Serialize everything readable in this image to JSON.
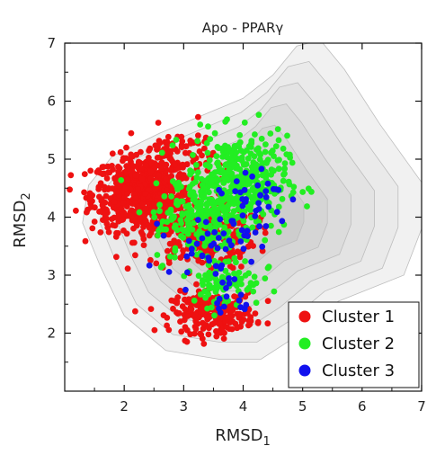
{
  "chart_data": {
    "type": "scatter",
    "title": "Apo - PPARγ",
    "xlabel": {
      "base": "RMSD",
      "sub": "1"
    },
    "ylabel": {
      "base": "RMSD",
      "sub": "2"
    },
    "xlim": [
      1,
      7
    ],
    "ylim": [
      1,
      7
    ],
    "x_ticks": [
      "2",
      "3",
      "4",
      "5",
      "6",
      "7"
    ],
    "y_ticks": [
      "2",
      "3",
      "4",
      "5",
      "6",
      "7"
    ],
    "grid": false,
    "legend_position": "bottom-right",
    "background": "grey free-energy contour landscape",
    "series": [
      {
        "name": "Cluster 1",
        "color": "#ee1111",
        "clusters": [
          {
            "center": [
              2.3,
              4.4
            ],
            "spread": [
              0.42,
              0.32
            ],
            "count": 650
          },
          {
            "center": [
              3.3,
              3.7
            ],
            "spread": [
              0.45,
              0.3
            ],
            "count": 260
          },
          {
            "center": [
              3.5,
              2.35
            ],
            "spread": [
              0.35,
              0.17
            ],
            "count": 240
          },
          {
            "center": [
              2.9,
              5.0
            ],
            "spread": [
              0.3,
              0.28
            ],
            "count": 90
          }
        ]
      },
      {
        "name": "Cluster 2",
        "color": "#22ee22",
        "clusters": [
          {
            "center": [
              3.9,
              4.6
            ],
            "spread": [
              0.42,
              0.4
            ],
            "count": 420
          },
          {
            "center": [
              3.3,
              3.9
            ],
            "spread": [
              0.4,
              0.35
            ],
            "count": 160
          },
          {
            "center": [
              3.7,
              2.9
            ],
            "spread": [
              0.3,
              0.22
            ],
            "count": 90
          }
        ]
      },
      {
        "name": "Cluster 3",
        "color": "#1111ee",
        "clusters": [
          {
            "center": [
              4.1,
              4.3
            ],
            "spread": [
              0.35,
              0.35
            ],
            "count": 40
          },
          {
            "center": [
              3.4,
              3.5
            ],
            "spread": [
              0.35,
              0.25
            ],
            "count": 40
          },
          {
            "center": [
              3.8,
              2.6
            ],
            "spread": [
              0.2,
              0.2
            ],
            "count": 15
          }
        ]
      }
    ]
  }
}
